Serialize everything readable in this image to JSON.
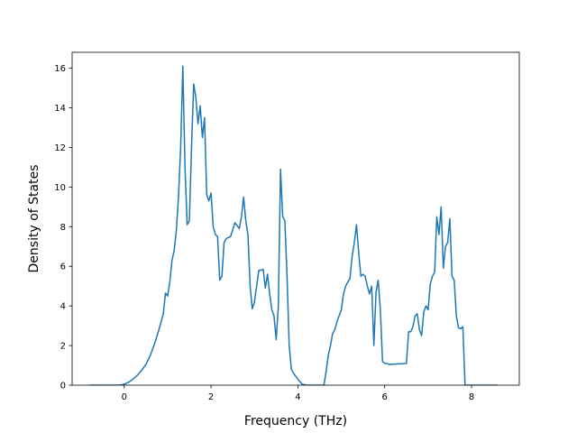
{
  "chart_data": {
    "type": "line",
    "title": "",
    "xlabel": "Frequency (THz)",
    "ylabel": "Density of States",
    "xlim": [
      -1.2,
      9.1
    ],
    "ylim": [
      0,
      16.8
    ],
    "x_ticks": [
      0,
      2,
      4,
      6,
      8
    ],
    "y_ticks": [
      0,
      2,
      4,
      6,
      8,
      10,
      12,
      14,
      16
    ],
    "grid": false,
    "legend": "none",
    "series": [
      {
        "color": "#1f77b4",
        "x": [
          -0.8,
          -0.1,
          0.0,
          0.1,
          0.2,
          0.3,
          0.4,
          0.5,
          0.6,
          0.7,
          0.8,
          0.9,
          0.95,
          1.0,
          1.05,
          1.1,
          1.15,
          1.2,
          1.25,
          1.3,
          1.35,
          1.4,
          1.45,
          1.5,
          1.55,
          1.6,
          1.65,
          1.7,
          1.75,
          1.8,
          1.85,
          1.9,
          1.95,
          2.0,
          2.05,
          2.1,
          2.15,
          2.2,
          2.25,
          2.3,
          2.35,
          2.4,
          2.45,
          2.55,
          2.65,
          2.7,
          2.75,
          2.8,
          2.85,
          2.9,
          2.95,
          3.0,
          3.05,
          3.1,
          3.15,
          3.2,
          3.25,
          3.3,
          3.35,
          3.4,
          3.45,
          3.5,
          3.55,
          3.6,
          3.65,
          3.7,
          3.75,
          3.8,
          3.85,
          3.9,
          4.0,
          4.1,
          4.2,
          4.6,
          4.65,
          4.7,
          4.75,
          4.8,
          4.85,
          4.9,
          4.95,
          5.0,
          5.05,
          5.1,
          5.15,
          5.2,
          5.25,
          5.3,
          5.35,
          5.4,
          5.45,
          5.5,
          5.55,
          5.6,
          5.65,
          5.7,
          5.75,
          5.8,
          5.85,
          5.9,
          5.95,
          6.0,
          6.05,
          6.1,
          6.5,
          6.55,
          6.6,
          6.65,
          6.7,
          6.75,
          6.8,
          6.85,
          6.9,
          6.95,
          7.0,
          7.05,
          7.1,
          7.15,
          7.2,
          7.25,
          7.3,
          7.35,
          7.4,
          7.45,
          7.5,
          7.55,
          7.6,
          7.65,
          7.7,
          7.75,
          7.8,
          7.85,
          7.9,
          8.6
        ],
        "y": [
          0,
          0,
          0.05,
          0.15,
          0.3,
          0.5,
          0.75,
          1.05,
          1.5,
          2.1,
          2.8,
          3.6,
          4.65,
          4.5,
          5.2,
          6.3,
          6.8,
          7.8,
          9.5,
          12.0,
          16.1,
          11.0,
          8.1,
          8.3,
          12.0,
          15.2,
          14.5,
          13.2,
          14.1,
          12.5,
          13.5,
          9.6,
          9.3,
          9.7,
          8.0,
          7.6,
          7.5,
          5.3,
          5.5,
          7.2,
          7.4,
          7.45,
          7.5,
          8.2,
          7.9,
          8.5,
          9.5,
          8.3,
          7.6,
          5.0,
          3.85,
          4.2,
          5.0,
          5.8,
          5.8,
          5.85,
          4.9,
          5.6,
          4.6,
          3.8,
          3.5,
          2.3,
          4.0,
          10.9,
          8.5,
          8.3,
          5.5,
          2.0,
          0.8,
          0.6,
          0.3,
          0.05,
          0,
          0,
          0.7,
          1.5,
          2.0,
          2.6,
          2.8,
          3.2,
          3.5,
          3.8,
          4.6,
          5.0,
          5.2,
          5.4,
          6.5,
          7.2,
          8.1,
          6.7,
          5.5,
          5.6,
          5.5,
          5.0,
          4.6,
          5.0,
          2.0,
          4.7,
          5.3,
          3.8,
          1.2,
          1.1,
          1.1,
          1.05,
          1.1,
          2.7,
          2.7,
          2.95,
          3.5,
          3.6,
          2.8,
          2.5,
          3.7,
          4.0,
          3.8,
          5.1,
          5.5,
          5.7,
          8.5,
          7.6,
          9.0,
          5.9,
          7.0,
          7.2,
          8.4,
          5.5,
          5.3,
          3.5,
          2.9,
          2.85,
          2.95,
          0,
          0,
          0
        ]
      }
    ]
  }
}
